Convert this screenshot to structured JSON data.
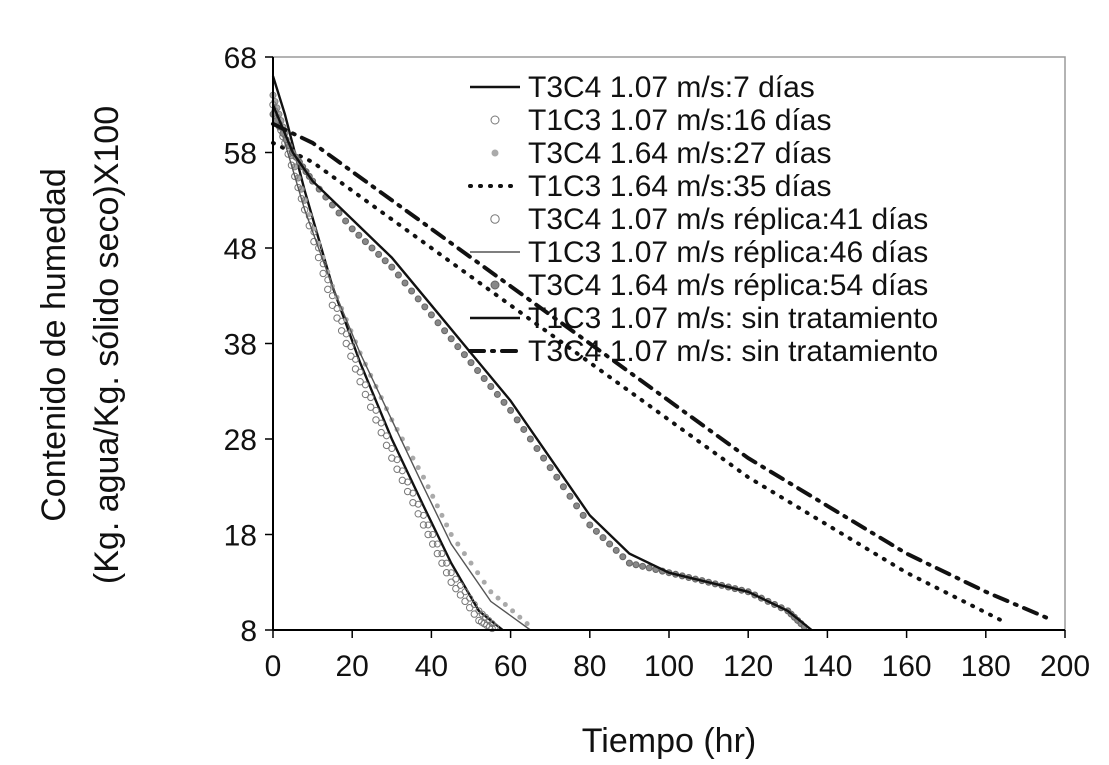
{
  "chart_data": {
    "type": "line",
    "title": "",
    "xlabel": "Tiempo (hr)",
    "ylabel_line1": "Contenido de humedad",
    "ylabel_line2": "(Kg. agua/Kg. sólido seco)X100",
    "xlim": [
      0,
      200
    ],
    "ylim": [
      8,
      68
    ],
    "xticks": [
      0,
      20,
      40,
      60,
      80,
      100,
      120,
      140,
      160,
      180,
      200
    ],
    "yticks": [
      8,
      18,
      28,
      38,
      48,
      58,
      68
    ],
    "grid": false,
    "legend_position": "top-right",
    "series": [
      {
        "name": "T3C4 1.07 m/s:7 días",
        "style": "solid",
        "marker": "none",
        "x": [
          0,
          3,
          8,
          15,
          22,
          30,
          38,
          45,
          52,
          58
        ],
        "y": [
          66,
          62,
          54,
          44,
          36,
          28,
          21,
          15,
          10,
          8
        ]
      },
      {
        "name": "T1C3 1.07 m/s:16 días",
        "style": "markers",
        "marker": "diamond",
        "x": [
          0,
          3,
          8,
          15,
          22,
          30,
          38,
          45,
          52,
          57
        ],
        "y": [
          64,
          60,
          53,
          43,
          35,
          27,
          20,
          14,
          10,
          8
        ]
      },
      {
        "name": "T3C4 1.64 m/s:27 días",
        "style": "markers",
        "marker": "dot-gray",
        "x": [
          0,
          3,
          8,
          15,
          22,
          30,
          38,
          45,
          55,
          66
        ],
        "y": [
          64,
          60,
          53,
          44,
          37,
          30,
          24,
          18,
          12,
          8
        ]
      },
      {
        "name": "T1C3 1.64 m/s:35 días",
        "style": "dotted",
        "marker": "none",
        "x": [
          0,
          10,
          20,
          40,
          60,
          80,
          100,
          120,
          140,
          160,
          184
        ],
        "y": [
          59,
          57,
          54,
          48,
          42,
          36,
          30,
          24,
          19,
          14,
          9
        ]
      },
      {
        "name": "T3C4 1.07 m/s réplica:41 días",
        "style": "markers",
        "marker": "triangle",
        "x": [
          0,
          3,
          8,
          15,
          22,
          30,
          38,
          45,
          52,
          56
        ],
        "y": [
          63,
          59,
          52,
          42,
          34,
          26,
          19,
          13,
          9,
          8
        ]
      },
      {
        "name": "T1C3 1.07 m/s réplica:46 días",
        "style": "solid-thin",
        "marker": "none",
        "x": [
          0,
          3,
          8,
          15,
          22,
          30,
          38,
          45,
          55,
          65
        ],
        "y": [
          63,
          59,
          52,
          44,
          37,
          30,
          23,
          17,
          11,
          8
        ]
      },
      {
        "name": "T3C4 1.64 m/s réplica:54 días",
        "style": "markers",
        "marker": "diamond-gray",
        "x": [
          0,
          5,
          10,
          20,
          30,
          40,
          50,
          60,
          70,
          80,
          90,
          100,
          110,
          120,
          130,
          135
        ],
        "y": [
          62,
          58,
          55,
          50,
          46,
          41,
          36,
          31,
          25,
          19,
          15,
          14,
          13,
          12,
          10,
          8
        ]
      },
      {
        "name": "T1C3 1.07 m/s: sin tratamiento",
        "style": "solid",
        "marker": "none",
        "x": [
          0,
          5,
          10,
          20,
          30,
          40,
          50,
          60,
          70,
          80,
          90,
          100,
          110,
          120,
          130,
          136
        ],
        "y": [
          63,
          58,
          55,
          51,
          47,
          42,
          37,
          32,
          26,
          20,
          16,
          14,
          13,
          12,
          10,
          8
        ]
      },
      {
        "name": "T3C4 1.07 m/s: sin tratamiento",
        "style": "dashdot",
        "marker": "none",
        "x": [
          0,
          10,
          20,
          40,
          60,
          80,
          100,
          120,
          140,
          160,
          180,
          197
        ],
        "y": [
          61,
          59,
          56,
          50,
          44,
          38,
          32,
          26,
          21,
          16,
          12,
          9
        ]
      }
    ]
  }
}
